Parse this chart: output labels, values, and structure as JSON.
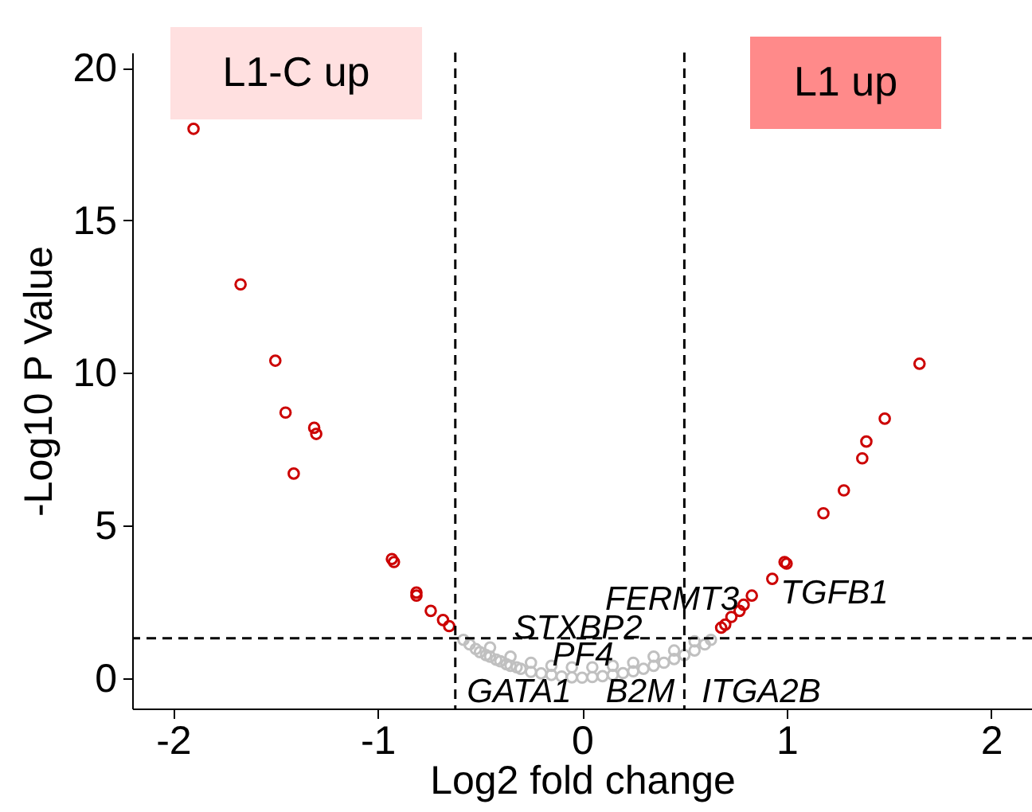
{
  "chart_data": {
    "type": "scatter",
    "xlabel": "Log2 fold change",
    "ylabel": "-Log10 P Value",
    "xlim": [
      -2.2,
      2.2
    ],
    "ylim": [
      -1,
      20.5
    ],
    "xticks": [
      -2,
      -1,
      0,
      1,
      2
    ],
    "yticks": [
      0,
      5,
      10,
      15,
      20
    ],
    "grid": false,
    "marker": "circle",
    "series": [
      {
        "color": "#c0c0c0",
        "x": [
          -0.58,
          -0.55,
          -0.52,
          -0.5,
          -0.47,
          -0.45,
          -0.42,
          -0.4,
          -0.37,
          -0.35,
          -0.32,
          -0.3,
          -0.25,
          -0.2,
          -0.15,
          -0.1,
          -0.05,
          0,
          0.05,
          0.1,
          0.15,
          0.2,
          0.25,
          0.3,
          0.35,
          0.4,
          0.45,
          0.5,
          0.55,
          0.6,
          0.63,
          -0.45,
          -0.35,
          -0.25,
          -0.15,
          -0.05,
          0.05,
          0.15,
          0.25,
          0.35,
          0.45,
          0.55
        ],
        "values": [
          1.25,
          1.1,
          0.95,
          0.85,
          0.75,
          0.7,
          0.6,
          0.55,
          0.45,
          0.4,
          0.35,
          0.3,
          0.2,
          0.15,
          0.1,
          0.05,
          0.02,
          0.01,
          0.03,
          0.06,
          0.1,
          0.16,
          0.22,
          0.3,
          0.4,
          0.5,
          0.62,
          0.75,
          0.9,
          1.1,
          1.25,
          1.0,
          0.7,
          0.5,
          0.4,
          0.35,
          0.35,
          0.4,
          0.5,
          0.7,
          0.9,
          1.2
        ]
      },
      {
        "color": "#cc0000",
        "x": [
          -1.9,
          -1.67,
          -1.5,
          -1.45,
          -1.31,
          -1.3,
          -1.41,
          -0.93,
          -0.92,
          -0.81,
          -0.81,
          -0.74,
          -0.68,
          -0.65,
          1.65,
          1.48,
          1.39,
          1.37,
          1.28,
          1.18,
          0.99,
          1.0,
          0.93,
          0.83,
          0.79,
          0.77,
          0.73,
          0.7,
          0.68
        ],
        "values": [
          18.0,
          12.9,
          10.4,
          8.7,
          8.2,
          8.0,
          6.7,
          3.9,
          3.8,
          2.8,
          2.7,
          2.2,
          1.9,
          1.7,
          10.3,
          8.5,
          7.75,
          7.2,
          6.15,
          5.4,
          3.8,
          3.75,
          3.25,
          2.7,
          2.4,
          2.2,
          2.0,
          1.75,
          1.65
        ]
      }
    ],
    "ref_lines": [
      {
        "axis": "x",
        "value": -0.62,
        "line_style": "dashed"
      },
      {
        "axis": "x",
        "value": 0.5,
        "line_style": "dashed"
      },
      {
        "axis": "y",
        "value": 1.3,
        "line_style": "dashed"
      }
    ],
    "annotations": [
      "L1-C up",
      "L1 up",
      "FERMT3",
      "TGFB1",
      "STXBP2",
      "PF4",
      "GATA1",
      "B2M",
      "ITGA2B"
    ]
  }
}
